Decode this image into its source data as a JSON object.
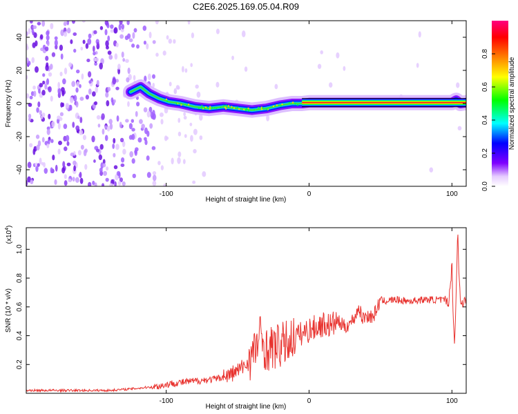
{
  "title": "C2E6.2025.169.05.04.R09",
  "chart_data": [
    {
      "type": "heatmap",
      "xlabel": "Height of straight line (km)",
      "ylabel": "Frequency (Hz)",
      "xlim": [
        -198,
        110
      ],
      "ylim": [
        -50,
        50
      ],
      "x_ticks": [
        -100,
        0,
        100
      ],
      "x_tick_labels": [
        "-100",
        "0",
        "100"
      ],
      "y_ticks": [
        -40,
        -20,
        0,
        20,
        40
      ],
      "y_tick_labels": [
        "-40",
        "-20",
        "0",
        "20",
        "40"
      ],
      "colorbar": {
        "label": "Normalized spectral amplitude",
        "range": [
          0,
          1
        ],
        "ticks": [
          0.0,
          0.2,
          0.4,
          0.6,
          0.8
        ],
        "tick_labels": [
          "0.0",
          "0.2",
          "0.4",
          "0.6",
          "0.8"
        ],
        "colors": [
          "#ffffff",
          "#7f00ff",
          "#0000ff",
          "#00ffff",
          "#00ff00",
          "#ffff00",
          "#ff8000",
          "#ff0000",
          "#ff0080"
        ]
      },
      "ridge": {
        "x": [
          -125,
          -118,
          -112,
          -105,
          -98,
          -90,
          -80,
          -70,
          -60,
          -50,
          -40,
          -30,
          -20,
          -12,
          -5,
          0,
          20,
          40,
          60,
          80,
          100,
          103,
          106,
          110
        ],
        "y": [
          7,
          10,
          6,
          3,
          1,
          0,
          -2,
          -3,
          -2,
          -3,
          -4,
          -3,
          -1,
          0,
          0,
          0.5,
          0.5,
          0.5,
          0.5,
          0.5,
          0.5,
          2,
          0,
          0.5
        ]
      },
      "grid": false
    },
    {
      "type": "line",
      "xlabel": "Height of straight line (km)",
      "ylabel": "SNR (10 * v/v)",
      "y_scale_label": "(x10",
      "y_scale_exp": "4",
      "y_scale_suffix": ")",
      "xlim": [
        -198,
        110
      ],
      "ylim": [
        0,
        1.15
      ],
      "x_ticks": [
        -100,
        0,
        100
      ],
      "x_tick_labels": [
        "-100",
        "0",
        "100"
      ],
      "y_ticks": [
        0.2,
        0.4,
        0.6,
        0.8,
        1.0
      ],
      "y_tick_labels": [
        "0.2",
        "0.4",
        "0.6",
        "0.8",
        "1.0"
      ],
      "series": [
        {
          "color": "#e8332f",
          "x": [
            -198,
            -180,
            -160,
            -140,
            -125,
            -115,
            -105,
            -95,
            -85,
            -75,
            -65,
            -55,
            -48,
            -42,
            -38,
            -34,
            -30,
            -25,
            -20,
            -16,
            -12,
            -8,
            -4,
            0,
            5,
            10,
            15,
            20,
            25,
            30,
            33,
            35,
            37,
            40,
            45,
            50,
            52,
            60,
            70,
            80,
            90,
            98,
            100,
            101,
            102,
            103,
            104,
            105,
            106,
            108,
            110
          ],
          "y": [
            0.02,
            0.02,
            0.02,
            0.02,
            0.03,
            0.04,
            0.05,
            0.07,
            0.08,
            0.09,
            0.1,
            0.13,
            0.17,
            0.22,
            0.3,
            0.4,
            0.3,
            0.32,
            0.33,
            0.35,
            0.38,
            0.4,
            0.42,
            0.44,
            0.46,
            0.48,
            0.47,
            0.5,
            0.46,
            0.5,
            0.55,
            0.6,
            0.52,
            0.54,
            0.53,
            0.65,
            0.64,
            0.65,
            0.64,
            0.65,
            0.65,
            0.64,
            0.9,
            0.5,
            0.35,
            0.7,
            1.15,
            0.8,
            0.65,
            0.63,
            0.64
          ]
        }
      ],
      "grid": false
    }
  ]
}
